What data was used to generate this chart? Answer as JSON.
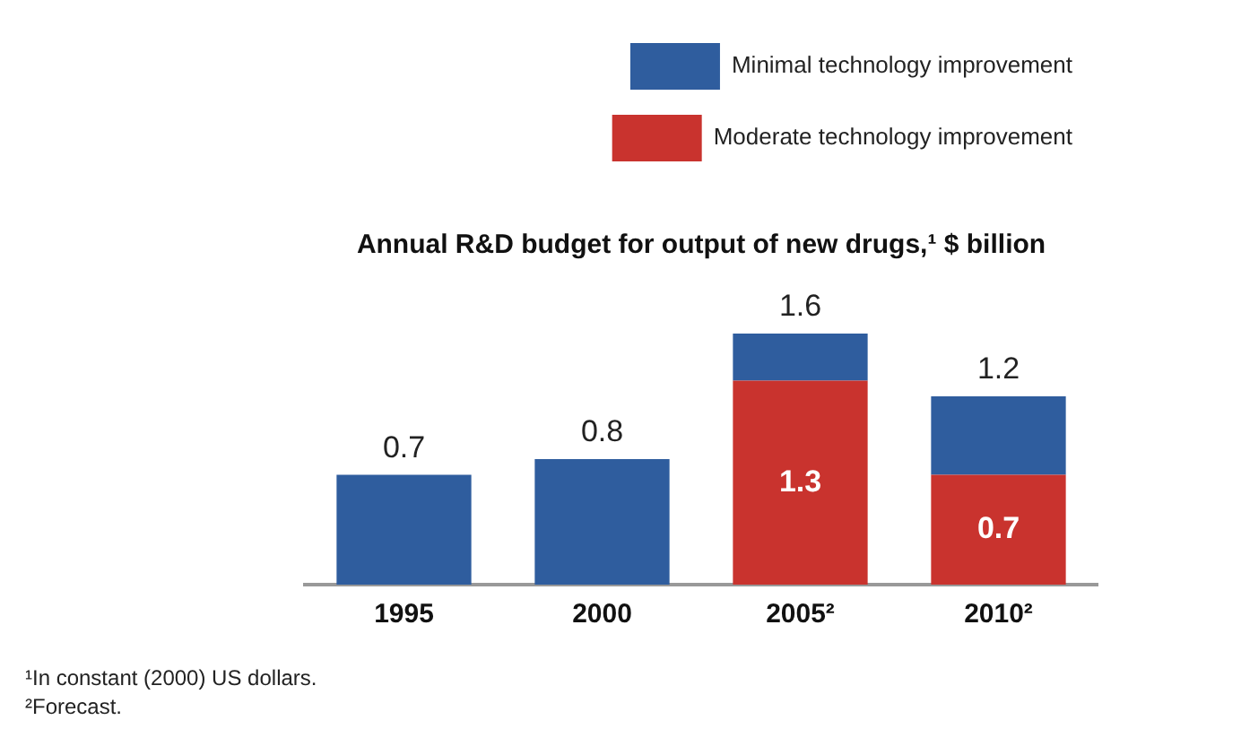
{
  "chart_data": {
    "type": "bar",
    "title": "Annual R&D budget for output of new drugs,¹ $ billion",
    "categories": [
      "1995",
      "2000",
      "2005²",
      "2010²"
    ],
    "stacked": true,
    "series": [
      {
        "name": "Moderate technology improvement",
        "color": "#c9332e",
        "values": [
          null,
          null,
          1.3,
          0.7
        ],
        "value_labels": [
          null,
          null,
          "1.3",
          "0.7"
        ]
      },
      {
        "name": "Minimal technology improvement",
        "color": "#2f5d9e",
        "values": [
          0.7,
          0.8,
          0.3,
          0.5
        ],
        "value_labels": [
          "0.7",
          "0.8",
          null,
          null
        ]
      }
    ],
    "totals": [
      null,
      null,
      "1.6",
      "1.2"
    ],
    "legend": "top right",
    "grid": false,
    "annotations": [
      "¹In constant (2000) US dollars.",
      "²Forecast."
    ]
  }
}
